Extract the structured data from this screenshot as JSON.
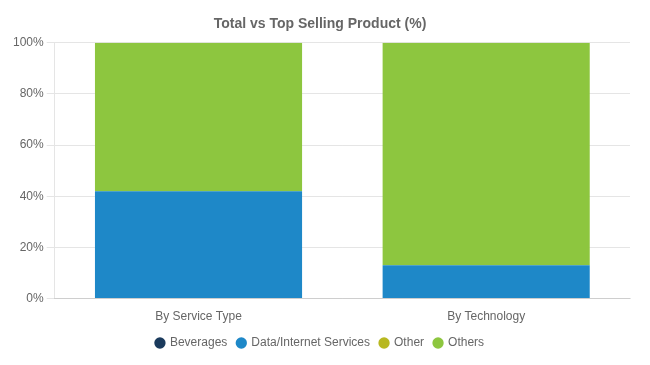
{
  "chart_data": {
    "type": "bar",
    "title": "Total vs Top Selling Product (%)",
    "categories": [
      "By Service Type",
      "By Technology"
    ],
    "series": [
      {
        "name": "Beverages",
        "color": "#1a3a5c",
        "values": [
          0,
          0
        ]
      },
      {
        "name": "Data/Internet Services",
        "color": "#1e88c8",
        "values": [
          42,
          13
        ]
      },
      {
        "name": "Other",
        "color": "#b8b820",
        "values": [
          0,
          0
        ]
      },
      {
        "name": "Others",
        "color": "#8dc63f",
        "values": [
          58,
          87
        ]
      }
    ],
    "stacked": true,
    "ylim": [
      0,
      100
    ],
    "yticks": [
      {
        "value": 0,
        "label": "0%"
      },
      {
        "value": 20,
        "label": "20%"
      },
      {
        "value": 40,
        "label": "40%"
      },
      {
        "value": 60,
        "label": "60%"
      },
      {
        "value": 80,
        "label": "80%"
      },
      {
        "value": 100,
        "label": "100%"
      }
    ],
    "grid": true,
    "legend": "bottom"
  }
}
